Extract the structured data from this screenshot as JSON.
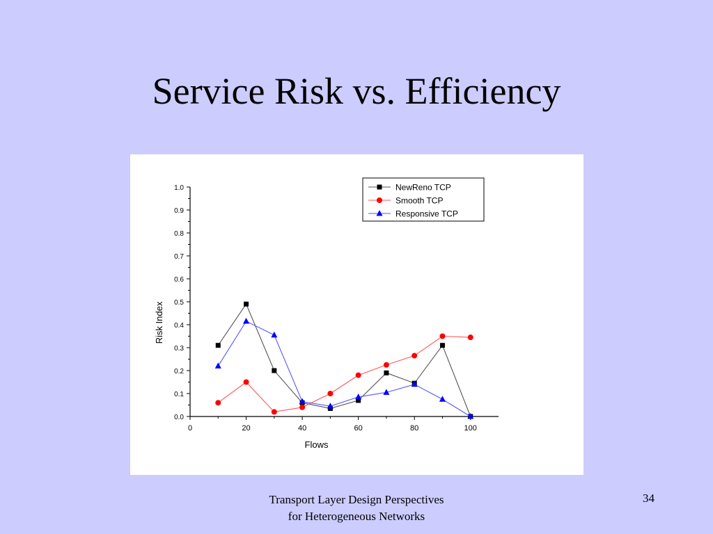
{
  "slide": {
    "title": "Service Risk vs. Efficiency",
    "footer_line1": "Transport Layer Design Perspectives",
    "footer_line2": "for Heterogeneous Networks",
    "page_number": "34"
  },
  "chart_data": {
    "type": "line",
    "xlabel": "Flows",
    "ylabel": "Risk Index",
    "xlim": [
      0,
      110
    ],
    "ylim": [
      0.0,
      1.0
    ],
    "x_ticks": [
      "0",
      "20",
      "40",
      "60",
      "80",
      "100"
    ],
    "y_ticks": [
      "0.0",
      "0.1",
      "0.2",
      "0.3",
      "0.4",
      "0.5",
      "0.6",
      "0.7",
      "0.8",
      "0.9",
      "1.0"
    ],
    "grid": false,
    "legend_position": "top-right",
    "series": [
      {
        "name": "NewReno TCP",
        "color": "#000000",
        "line_color": "#555555",
        "marker": "square",
        "x": [
          10,
          20,
          30,
          40,
          50,
          60,
          70,
          80,
          90,
          100
        ],
        "y": [
          0.31,
          0.49,
          0.2,
          0.06,
          0.035,
          0.07,
          0.19,
          0.145,
          0.31,
          0.0
        ]
      },
      {
        "name": "Smooth TCP",
        "color": "#ff0000",
        "line_color": "#ff5555",
        "marker": "circle",
        "x": [
          10,
          20,
          30,
          40,
          50,
          60,
          70,
          80,
          90,
          100
        ],
        "y": [
          0.06,
          0.15,
          0.02,
          0.04,
          0.1,
          0.18,
          0.225,
          0.265,
          0.35,
          0.345
        ]
      },
      {
        "name": "Responsive TCP",
        "color": "#0000ff",
        "line_color": "#5555ff",
        "marker": "triangle",
        "x": [
          10,
          20,
          30,
          40,
          50,
          60,
          70,
          80,
          90,
          100
        ],
        "y": [
          0.22,
          0.415,
          0.355,
          0.065,
          0.045,
          0.085,
          0.105,
          0.14,
          0.075,
          0.0
        ]
      }
    ]
  }
}
